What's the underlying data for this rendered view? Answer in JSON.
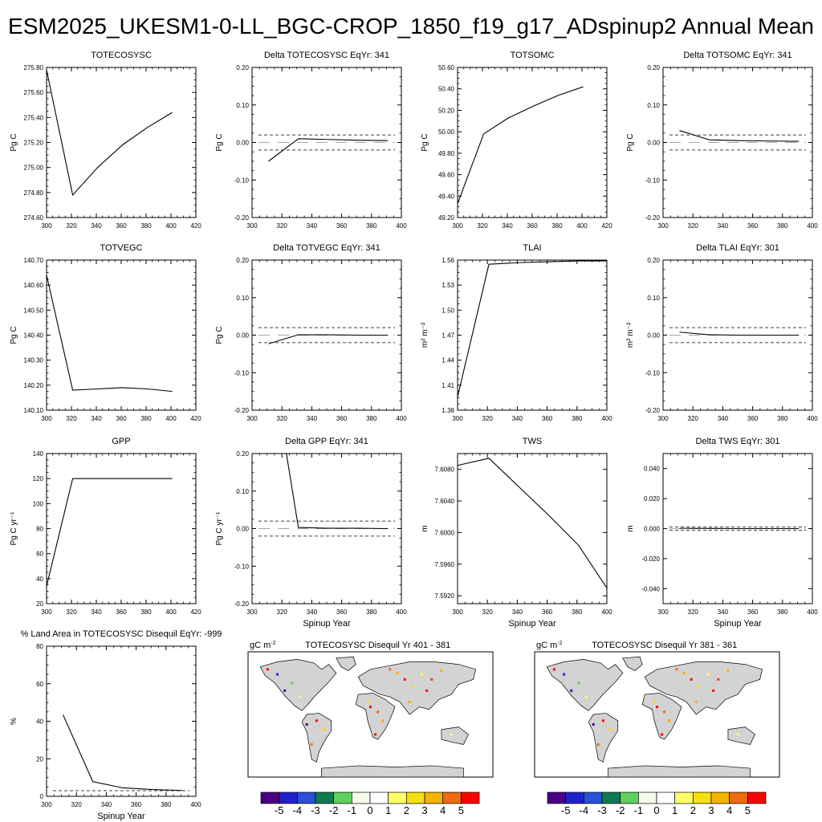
{
  "page": {
    "title": "ESM2025_UKESM1-0-LL_BGC-CROP_1850_f19_g17_ADspinup2 Annual Mean"
  },
  "colors": {
    "land": "#d3d3d3",
    "ocean": "#ffffff",
    "line": "#000000"
  },
  "chart_data": [
    {
      "type": "line",
      "title": "TOTECOSYSC",
      "ylabel": "Pg C",
      "xlabel": "",
      "xlim": [
        300,
        420
      ],
      "ylim": [
        274.6,
        275.8
      ],
      "xticks": [
        "300",
        "320",
        "340",
        "360",
        "380",
        "400",
        "420"
      ],
      "yticks": [
        "274.60",
        "274.80",
        "275.00",
        "275.20",
        "275.40",
        "275.60",
        "275.80"
      ],
      "x": [
        300,
        321,
        341,
        361,
        381,
        401
      ],
      "y": [
        275.78,
        274.78,
        275.0,
        275.18,
        275.32,
        275.44
      ]
    },
    {
      "type": "line",
      "title": "Delta TOTECOSYSC EqYr: 341",
      "ylabel": "Pg C",
      "xlabel": "",
      "xlim": [
        300,
        400
      ],
      "ylim": [
        -0.2,
        0.2
      ],
      "xticks": [
        "300",
        "320",
        "340",
        "360",
        "380",
        "400"
      ],
      "yticks": [
        "-0.20",
        "-0.10",
        "0.00",
        "0.10",
        "0.20"
      ],
      "x": [
        311,
        331,
        351,
        371,
        391
      ],
      "y": [
        -0.05,
        0.01,
        0.008,
        0.006,
        0.005
      ],
      "threshold": 0.02
    },
    {
      "type": "line",
      "title": "TOTSOMC",
      "ylabel": "Pg C",
      "xlabel": "",
      "xlim": [
        300,
        420
      ],
      "ylim": [
        49.2,
        50.6
      ],
      "xticks": [
        "300",
        "320",
        "340",
        "360",
        "380",
        "400",
        "420"
      ],
      "yticks": [
        "49.20",
        "49.40",
        "49.60",
        "49.80",
        "50.00",
        "50.20",
        "50.40",
        "50.60"
      ],
      "x": [
        300,
        321,
        341,
        361,
        381,
        401
      ],
      "y": [
        49.33,
        49.98,
        50.13,
        50.24,
        50.34,
        50.42
      ]
    },
    {
      "type": "line",
      "title": "Delta TOTSOMC EqYr: 341",
      "ylabel": "Pg C",
      "xlabel": "",
      "xlim": [
        300,
        400
      ],
      "ylim": [
        -0.2,
        0.2
      ],
      "xticks": [
        "300",
        "320",
        "340",
        "360",
        "380",
        "400"
      ],
      "yticks": [
        "-0.20",
        "-0.10",
        "0.00",
        "0.10",
        "0.20"
      ],
      "x": [
        311,
        331,
        351,
        371,
        391
      ],
      "y": [
        0.032,
        0.007,
        0.005,
        0.004,
        0.003
      ],
      "threshold": 0.02
    },
    {
      "type": "line",
      "title": "TOTVEGC",
      "ylabel": "Pg C",
      "xlabel": "",
      "xlim": [
        300,
        420
      ],
      "ylim": [
        140.1,
        140.7
      ],
      "xticks": [
        "300",
        "320",
        "340",
        "360",
        "380",
        "400",
        "420"
      ],
      "yticks": [
        "140.10",
        "140.20",
        "140.30",
        "140.40",
        "140.50",
        "140.60",
        "140.70"
      ],
      "x": [
        300,
        321,
        341,
        361,
        381,
        401
      ],
      "y": [
        140.64,
        140.18,
        140.185,
        140.19,
        140.185,
        140.175
      ]
    },
    {
      "type": "line",
      "title": "Delta TOTVEGC EqYr: 341",
      "ylabel": "Pg C",
      "xlabel": "",
      "xlim": [
        300,
        400
      ],
      "ylim": [
        -0.2,
        0.2
      ],
      "xticks": [
        "300",
        "320",
        "340",
        "360",
        "380",
        "400"
      ],
      "yticks": [
        "-0.20",
        "-0.10",
        "0.00",
        "0.10",
        "0.20"
      ],
      "x": [
        311,
        331,
        351,
        371,
        391
      ],
      "y": [
        -0.023,
        0.001,
        0.001,
        0.0,
        0.0
      ],
      "threshold": 0.02
    },
    {
      "type": "line",
      "title": "TLAI",
      "ylabel": "m² m⁻²",
      "xlabel": "",
      "xlim": [
        300,
        400
      ],
      "ylim": [
        1.38,
        1.56
      ],
      "xticks": [
        "300",
        "320",
        "340",
        "360",
        "380",
        "400"
      ],
      "yticks": [
        "1.38",
        "1.41",
        "1.44",
        "1.47",
        "1.50",
        "1.53",
        "1.56"
      ],
      "x": [
        300,
        321,
        341,
        361,
        381,
        401
      ],
      "y": [
        1.396,
        1.555,
        1.557,
        1.558,
        1.559,
        1.559
      ]
    },
    {
      "type": "line",
      "title": "Delta TLAI EqYr: 301",
      "ylabel": "m² m⁻²",
      "xlabel": "",
      "xlim": [
        300,
        400
      ],
      "ylim": [
        -0.2,
        0.2
      ],
      "xticks": [
        "300",
        "320",
        "340",
        "360",
        "380",
        "400"
      ],
      "yticks": [
        "-0.20",
        "-0.10",
        "0.00",
        "0.10",
        "0.20"
      ],
      "x": [
        311,
        331,
        351,
        371,
        391
      ],
      "y": [
        0.008,
        0.001,
        0.0,
        0.0,
        0.0
      ],
      "threshold": 0.02
    },
    {
      "type": "line",
      "title": "GPP",
      "ylabel": "Pg C yr⁻¹",
      "xlabel": "",
      "xlim": [
        300,
        420
      ],
      "ylim": [
        20,
        140
      ],
      "xticks": [
        "300",
        "320",
        "340",
        "360",
        "380",
        "400",
        "420"
      ],
      "yticks": [
        "20",
        "40",
        "60",
        "80",
        "100",
        "120",
        "140"
      ],
      "x": [
        300,
        321,
        341,
        361,
        381,
        401
      ],
      "y": [
        34,
        120,
        120,
        120,
        120,
        120
      ]
    },
    {
      "type": "line",
      "title": "Delta GPP EqYr: 341",
      "ylabel": "Pg C yr⁻¹",
      "xlabel": "Spinup Year",
      "xlim": [
        300,
        400
      ],
      "ylim": [
        -0.2,
        0.2
      ],
      "xticks": [
        "300",
        "320",
        "340",
        "360",
        "380",
        "400"
      ],
      "yticks": [
        "-0.20",
        "-0.10",
        "0.00",
        "0.10",
        "0.20"
      ],
      "x": [
        323,
        331,
        351,
        371,
        391
      ],
      "y": [
        0.2,
        0.003,
        0.001,
        0.001,
        0.0
      ],
      "threshold": 0.02
    },
    {
      "type": "line",
      "title": "TWS",
      "ylabel": "m",
      "xlabel": "Spinup Year",
      "xlim": [
        300,
        400
      ],
      "ylim": [
        7.591,
        7.61
      ],
      "xticks": [
        "300",
        "320",
        "340",
        "360",
        "380",
        "400"
      ],
      "yticks": [
        "7.5920",
        "7.5960",
        "7.6000",
        "7.6040",
        "7.6080"
      ],
      "ytickvals": [
        7.592,
        7.596,
        7.6,
        7.604,
        7.608
      ],
      "x": [
        300,
        321,
        341,
        361,
        381,
        401
      ],
      "y": [
        7.6085,
        7.6094,
        7.6058,
        7.6022,
        7.5984,
        7.5927
      ]
    },
    {
      "type": "line",
      "title": "Delta TWS EqYr: 301",
      "ylabel": "m",
      "xlabel": "Spinup Year",
      "xlim": [
        300,
        400
      ],
      "ylim": [
        -0.05,
        0.05
      ],
      "xticks": [
        "300",
        "320",
        "340",
        "360",
        "380",
        "400"
      ],
      "yticks": [
        "-0.040",
        "-0.020",
        "0.000",
        "0.020",
        "0.040"
      ],
      "ytickvals": [
        -0.04,
        -0.02,
        0.0,
        0.02,
        0.04
      ],
      "x": [
        311,
        331,
        351,
        371,
        391
      ],
      "y": [
        0.0002,
        0.0001,
        0.0,
        0.0,
        0.0
      ],
      "threshold": 0.001
    },
    {
      "type": "line",
      "title": "% Land Area in TOTECOSYSC Disequil EqYr: -999",
      "ylabel": "%",
      "xlabel": "Spinup Year",
      "xlim": [
        300,
        400
      ],
      "ylim": [
        0,
        80
      ],
      "xticks": [
        "300",
        "320",
        "340",
        "360",
        "380",
        "400"
      ],
      "yticks": [
        "0",
        "20",
        "40",
        "60",
        "80"
      ],
      "x": [
        311,
        331,
        351,
        371,
        391
      ],
      "y": [
        43.5,
        7.8,
        4.5,
        3.6,
        3.1
      ],
      "threshold": 3
    }
  ],
  "maps": [
    {
      "units": "gC m",
      "units_sup": "-2",
      "title": "TOTECOSYSC Disequil Yr 401 - 381"
    },
    {
      "units": "gC m",
      "units_sup": "-2",
      "title": "TOTECOSYSC Disequil Yr 381 - 361"
    }
  ],
  "colorbar": {
    "labels": [
      "-5",
      "-4",
      "-3",
      "-2",
      "-1",
      "0",
      "1",
      "2",
      "3",
      "4",
      "5"
    ],
    "colors": [
      "#4b0082",
      "#2222cc",
      "#2850d8",
      "#0f7a50",
      "#5fcf5f",
      "#f3fbe9",
      "#ffffff",
      "#ffff66",
      "#f5df10",
      "#f5b300",
      "#f06a10",
      "#ff0000"
    ]
  }
}
